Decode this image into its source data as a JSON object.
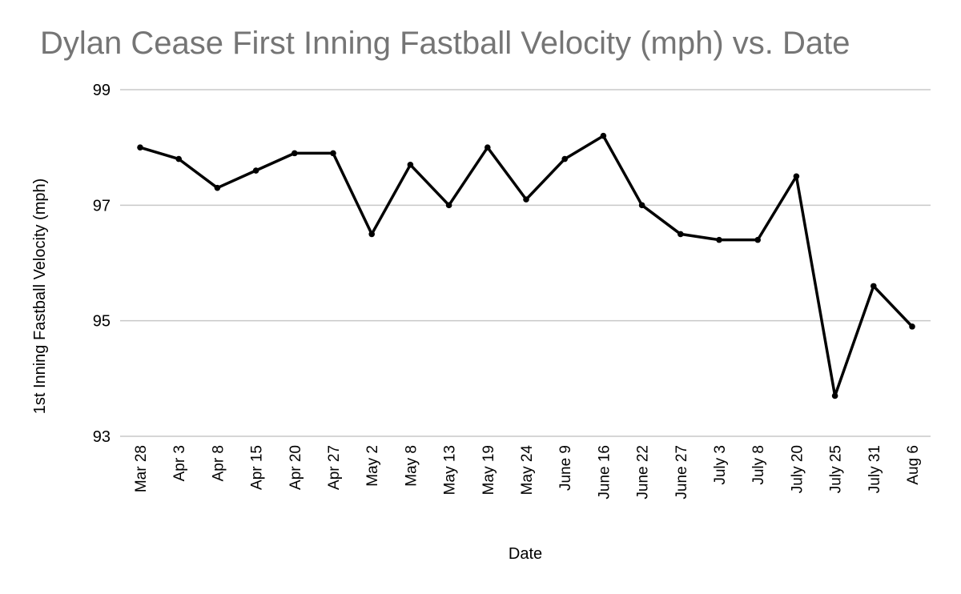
{
  "chart_data": {
    "type": "line",
    "title": "Dylan Cease First Inning Fastball Velocity (mph) vs. Date",
    "xlabel": "Date",
    "ylabel": "1st Inning Fastball Velocity (mph)",
    "ylim": [
      93,
      99
    ],
    "yticks": [
      93,
      95,
      97,
      99
    ],
    "grid": true,
    "line_color": "#000000",
    "grid_color": "#c8c8c8",
    "categories": [
      "Mar 28",
      "Apr 3",
      "Apr 8",
      "Apr 15",
      "Apr 20",
      "Apr 27",
      "May 2",
      "May 8",
      "May 13",
      "May 19",
      "May 24",
      "June 9",
      "June 16",
      "June 22",
      "June 27",
      "July 3",
      "July 8",
      "July 20",
      "July 25",
      "July 31",
      "Aug 6"
    ],
    "values": [
      98.0,
      97.8,
      97.3,
      97.6,
      97.9,
      97.9,
      96.5,
      97.7,
      97.0,
      98.0,
      97.1,
      97.8,
      98.2,
      97.0,
      96.5,
      96.4,
      96.4,
      97.5,
      93.7,
      95.6,
      94.9
    ]
  }
}
